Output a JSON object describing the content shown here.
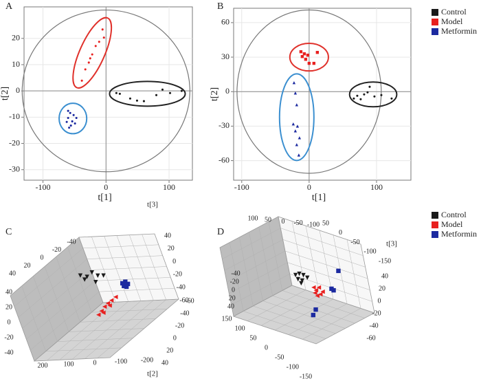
{
  "chart_data": [
    {
      "type": "scatter",
      "panel": "A",
      "x_label": "t[1]",
      "y_label": "t[2]",
      "xlim": [
        -130,
        137
      ],
      "ylim": [
        -34,
        32
      ],
      "xticks": [
        -100,
        0,
        100
      ],
      "yticks": [
        -30,
        -20,
        -10,
        0,
        10,
        20
      ],
      "grid": true,
      "legend": "right",
      "confidence_ellipse": {
        "rx": 133,
        "ry": 30.8
      },
      "series": [
        {
          "name": "Control",
          "color": "#1a1a1a",
          "marker": "circle",
          "ellipse_color": "#222222",
          "x": [
            16.4,
            21.9,
            38.3,
            49.2,
            60.1,
            79.8,
            89.6,
            101.6,
            120
          ],
          "y": [
            -0.8,
            -1.1,
            -2.9,
            -3.7,
            -3.9,
            -1.6,
            0.5,
            -0.8,
            0
          ],
          "ellipse": {
            "cx": 65.6,
            "cy": -1.1,
            "rx": 60,
            "ry": 4.7,
            "angle": 0
          }
        },
        {
          "name": "Model",
          "color": "#e8201f",
          "marker": "circle",
          "ellipse_color": "#e0312b",
          "x": [
            -5.5,
            -3.3,
            -10.9,
            -16.4,
            -21.9,
            -25.1,
            -27.3,
            -32.8,
            -38.3
          ],
          "y": [
            23.4,
            20.3,
            18.7,
            17.1,
            13.9,
            12.4,
            10.8,
            8.2,
            3.9
          ],
          "ellipse": {
            "cx": -21.9,
            "cy": 14.5,
            "rx": 19.7,
            "ry": 14.5,
            "angle": 24
          }
        },
        {
          "name": "Metformin",
          "color": "#1c2aa0",
          "marker": "circle",
          "ellipse_color": "#3b8fd0",
          "x": [
            -60.1,
            -56.8,
            -51.4,
            -60.1,
            -53.6,
            -49.2,
            -55.7,
            -62.3,
            -47,
            -58.5
          ],
          "y": [
            -7.6,
            -8.4,
            -9.2,
            -10.3,
            -11.6,
            -12.4,
            -13.2,
            -11.8,
            -10.3,
            -14.0
          ],
          "ellipse": {
            "cx": -52.5,
            "cy": -10.5,
            "rx": 21.9,
            "ry": 5.8,
            "angle": 0
          }
        }
      ]
    },
    {
      "type": "scatter",
      "panel": "B",
      "x_label": "t[1]",
      "y_label": "t[2]",
      "xlim": [
        -112,
        151
      ],
      "ylim": [
        -77,
        72.5
      ],
      "xticks": [
        -100,
        0,
        100
      ],
      "yticks": [
        -60,
        -30,
        0,
        30,
        60
      ],
      "grid": true,
      "confidence_ellipse": {
        "rx": 107,
        "ry": 71
      },
      "series": [
        {
          "name": "Control",
          "color": "#1a1a1a",
          "marker": "circle",
          "ellipse_color": "#222222",
          "x": [
            66.3,
            71.4,
            76.5,
            81.6,
            86.7,
            89.8,
            96.9,
            107.1,
            122.4
          ],
          "y": [
            -6,
            -3.6,
            -6.6,
            -2.4,
            -0.6,
            4.2,
            -4.2,
            -3,
            -6
          ],
          "ellipse": {
            "cx": 95,
            "cy": -2.4,
            "rx": 35,
            "ry": 10.8,
            "angle": 0
          }
        },
        {
          "name": "Model",
          "color": "#e8201f",
          "marker": "square",
          "ellipse_color": "#e0312b",
          "x": [
            -12.2,
            -7.1,
            -10.2,
            -5.1,
            0,
            7.1,
            12.2,
            -2
          ],
          "y": [
            34.7,
            32.9,
            30.5,
            28.1,
            24.6,
            24.6,
            34.1,
            31.7
          ],
          "ellipse": {
            "cx": 0,
            "cy": 30,
            "rx": 28.6,
            "ry": 12,
            "angle": 0
          }
        },
        {
          "name": "Metformin",
          "color": "#1c2aa0",
          "marker": "triangle",
          "ellipse_color": "#3b8fd0",
          "x": [
            -22.4,
            -20.4,
            -18.4,
            -23.5,
            -17.3,
            -20.4,
            -14.3,
            -18.4,
            -15.3
          ],
          "y": [
            7.8,
            -1.2,
            -11.4,
            -28.1,
            -30,
            -34.1,
            -40.1,
            -46.1,
            -55.1
          ],
          "ellipse": {
            "cx": -18.4,
            "cy": -22.2,
            "rx": 25.5,
            "ry": 37.7,
            "angle": 0
          }
        }
      ]
    },
    {
      "type": "scatter3d",
      "panel": "C",
      "legend": "right",
      "titles": [
        "t[3]",
        "t[2]"
      ],
      "xlim": [
        -200,
        200
      ],
      "ylim": [
        -60,
        60
      ],
      "zlim": [
        -60,
        60
      ],
      "edges": [
        {
          "ticks": [
            -40,
            -20,
            0,
            20,
            40
          ]
        },
        {
          "ticks": [
            40,
            20,
            0,
            -20,
            -40
          ]
        },
        {
          "ticks": [
            200,
            100,
            0,
            -100,
            -200
          ]
        },
        {
          "ticks": [
            40,
            20,
            0,
            -20,
            -40,
            -60
          ]
        },
        {
          "ticks": [
            -60,
            -40,
            -20,
            0,
            20,
            40
          ]
        }
      ],
      "series": [
        {
          "name": "Control",
          "color": "#1a1a1a",
          "marker": "triangle-down",
          "x": [
            -204,
            -191,
            -169,
            -125,
            -103,
            -158,
            -113
          ],
          "y": [
            -44,
            -49,
            -52,
            -47,
            -49,
            -36,
            -38
          ],
          "z": [
            4,
            -3,
            2,
            0,
            -2,
            3,
            -4
          ]
        },
        {
          "name": "Model",
          "color": "#e8201f",
          "marker": "triangle-left",
          "x": [
            136,
            128,
            117,
            113,
            114,
            115,
            150,
            138
          ],
          "y": [
            38,
            30,
            21,
            14,
            8,
            1,
            34,
            19
          ],
          "z": [
            0,
            0,
            0,
            0,
            0,
            0,
            0,
            0
          ]
        },
        {
          "name": "Metformin",
          "color": "#1c2aa0",
          "marker": "square",
          "x": [
            63,
            69,
            98,
            89,
            109
          ],
          "y": [
            -28,
            -31,
            -26,
            -22,
            -20
          ],
          "z": [
            0,
            0,
            0,
            0,
            0
          ]
        }
      ]
    },
    {
      "type": "scatter3d",
      "panel": "D",
      "titles": [
        "t[3]"
      ],
      "xlim": [
        -200,
        200
      ],
      "ylim": [
        -60,
        60
      ],
      "zlim": [
        -60,
        60
      ],
      "edges": [
        {
          "ticks": [
            100,
            50,
            0,
            -50,
            -100
          ]
        },
        {
          "ticks": [
            50,
            0,
            -50,
            -100,
            -150
          ]
        },
        {
          "ticks": [
            40,
            20,
            0,
            -20,
            -40,
            -60
          ]
        },
        {
          "ticks": [
            -40,
            -20,
            0,
            20,
            40
          ]
        },
        {
          "ticks": [
            150,
            100,
            50,
            0,
            -50,
            -100,
            -150
          ]
        }
      ],
      "series": [
        {
          "name": "Control",
          "color": "#1a1a1a",
          "marker": "triangle-down",
          "x": [
            -34,
            -30,
            -10,
            -3,
            17,
            16,
            29
          ],
          "y": [
            -11,
            -17,
            -17,
            -3,
            -3,
            -14,
            4
          ],
          "z": [
            0,
            0,
            0,
            0,
            0,
            0,
            0
          ]
        },
        {
          "name": "Model",
          "color": "#e8201f",
          "marker": "triangle-left",
          "x": [
            89,
            112,
            105,
            124,
            148,
            140,
            147
          ],
          "y": [
            4,
            9,
            0,
            16,
            15,
            7,
            21
          ],
          "z": [
            0,
            0,
            0,
            0,
            0,
            0,
            0
          ]
        },
        {
          "name": "Metformin",
          "color": "#1c2aa0",
          "marker": "square",
          "x": [
            70,
            150,
            165,
            220,
            243
          ],
          "y": [
            -55,
            -7,
            -5,
            55,
            70
          ],
          "z": [
            0,
            0,
            0,
            0,
            0
          ]
        }
      ]
    }
  ]
}
